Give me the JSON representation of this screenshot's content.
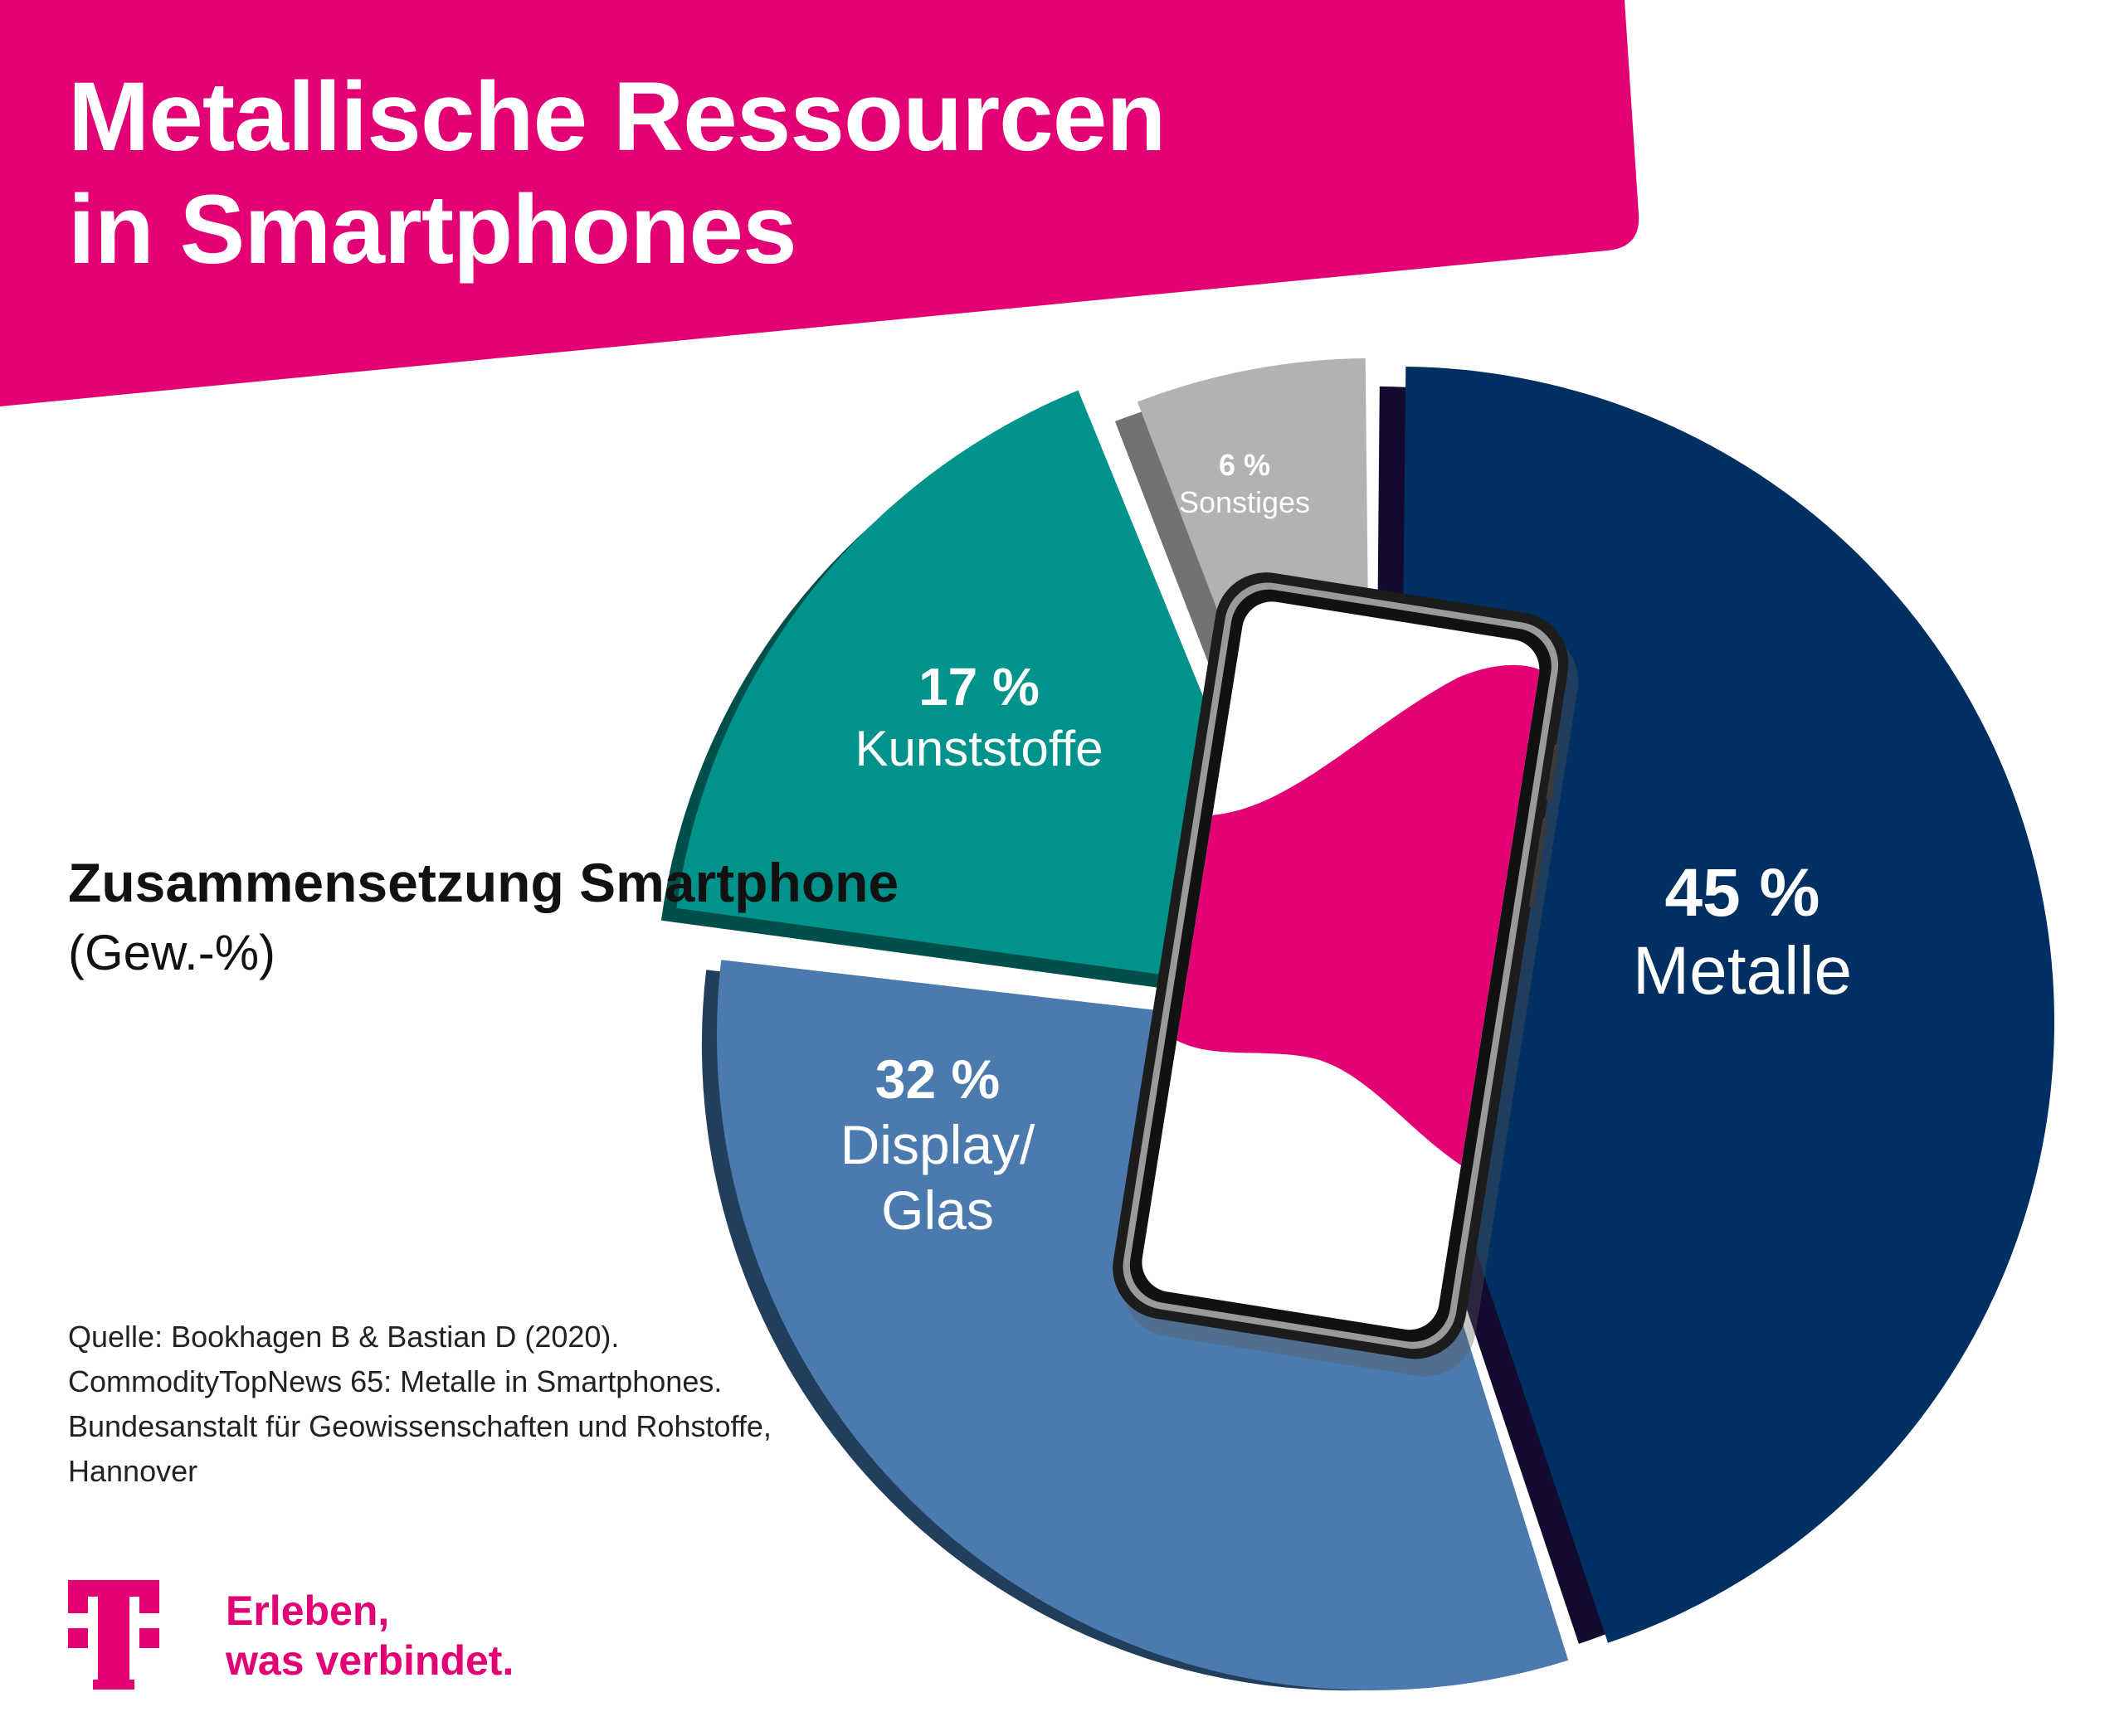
{
  "title": {
    "line1": "Metallische Ressourcen",
    "line2": "in Smartphones"
  },
  "colors": {
    "brand_magenta": "#e20074",
    "metalle": "#002f62",
    "display_glas": "#4a7aae",
    "kunststoffe": "#00938c",
    "sonstiges": "#b2b2b2"
  },
  "chart_data": {
    "type": "pie",
    "title": "Zusammensetzung Smartphone",
    "unit": "(Gew.-%)",
    "slices": [
      {
        "label": "Metalle",
        "value": 45,
        "value_label": "45 %",
        "color": "#002f62"
      },
      {
        "label": "Display/\nGlas",
        "value": 32,
        "value_label": "32 %",
        "color": "#4a7aae"
      },
      {
        "label": "Kunststoffe",
        "value": 17,
        "value_label": "17 %",
        "color": "#00938c"
      },
      {
        "label": "Sonstiges",
        "value": 6,
        "value_label": "6 %",
        "color": "#b2b2b2"
      }
    ]
  },
  "source": {
    "lines": [
      "Quelle: Bookhagen B & Bastian D (2020).",
      "CommodityTopNews 65: Metalle in Smartphones.",
      "Bundesanstalt für Geowissenschaften und Rohstoffe,",
      "Hannover"
    ]
  },
  "brand": {
    "logo_icon": "telekom-t-logo-icon",
    "slogan_line1": "Erleben,",
    "slogan_line2": "was verbindet."
  }
}
